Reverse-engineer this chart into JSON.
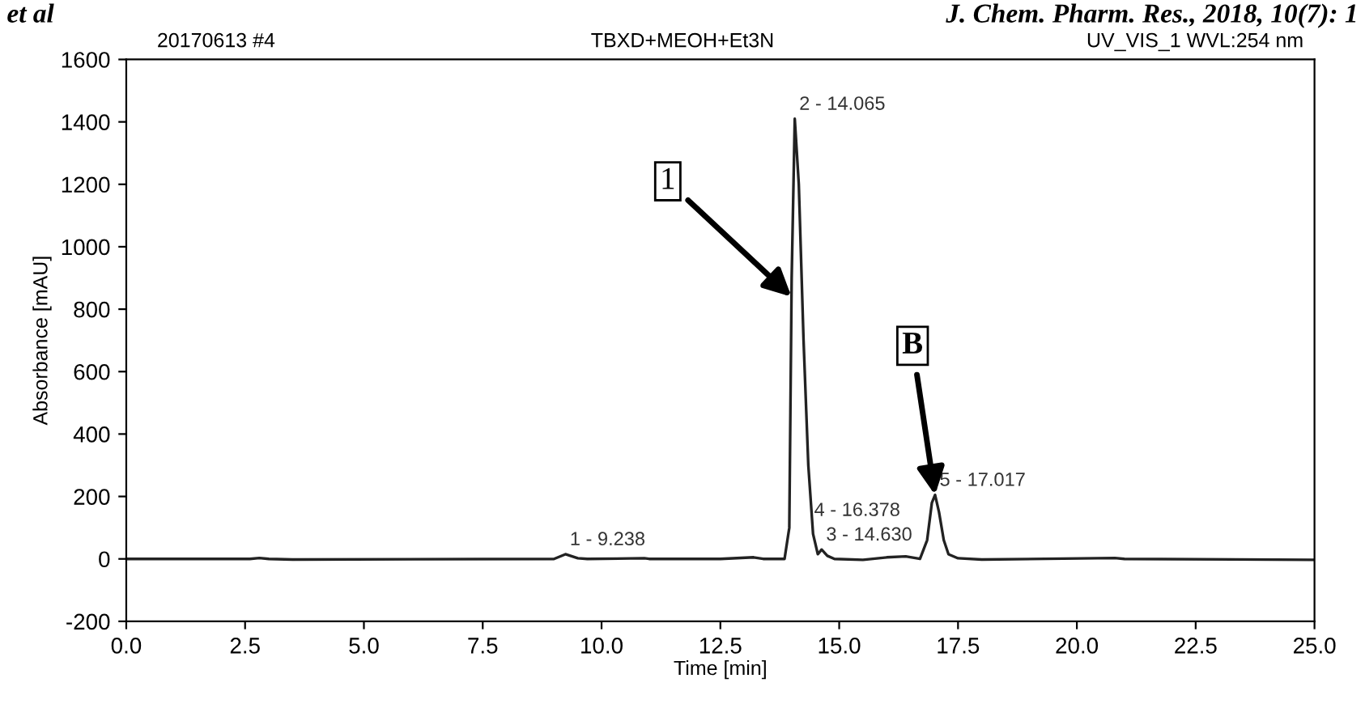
{
  "chart_data": {
    "type": "line",
    "title": "TBXD+MEOH+Et3N",
    "xlabel": "Time [min]",
    "ylabel": "Absorbance [mAU]",
    "x": [
      0,
      2.6,
      2.8,
      3.0,
      3.5,
      9.0,
      9.24,
      9.5,
      9.7,
      10.9,
      11.0,
      12.5,
      13.2,
      13.4,
      13.85,
      13.95,
      14.0,
      14.065,
      14.15,
      14.25,
      14.35,
      14.45,
      14.55,
      14.63,
      14.75,
      14.9,
      15.5,
      16.0,
      16.4,
      16.7,
      16.85,
      16.95,
      17.017,
      17.1,
      17.2,
      17.3,
      17.5,
      18.0,
      20.8,
      21.0,
      25.0
    ],
    "series": [
      {
        "color": "#222222",
        "values": [
          0,
          0,
          3,
          0,
          -2,
          0,
          15,
          2,
          0,
          2,
          0,
          0,
          5,
          0,
          0,
          100,
          900,
          1410,
          1200,
          700,
          300,
          80,
          15,
          30,
          10,
          0,
          -3,
          5,
          8,
          0,
          60,
          180,
          205,
          150,
          60,
          15,
          2,
          -2,
          3,
          0,
          -3
        ]
      }
    ],
    "xlim": [
      0,
      25
    ],
    "ylim": [
      -200,
      1600
    ],
    "xticks": [
      {
        "value": 0,
        "label": "0.0"
      },
      {
        "value": 2.5,
        "label": "2.5"
      },
      {
        "value": 5,
        "label": "5.0"
      },
      {
        "value": 7.5,
        "label": "7.5"
      },
      {
        "value": 10,
        "label": "10.0"
      },
      {
        "value": 12.5,
        "label": "12.5"
      },
      {
        "value": 15,
        "label": "15.0"
      },
      {
        "value": 17.5,
        "label": "17.5"
      },
      {
        "value": 20,
        "label": "20.0"
      },
      {
        "value": 22.5,
        "label": "22.5"
      },
      {
        "value": 25,
        "label": "25.0"
      }
    ],
    "yticks": [
      -200,
      0,
      200,
      400,
      600,
      800,
      1000,
      1200,
      1400,
      1600
    ],
    "annotations": [
      "et al",
      "J. Chem. Pharm. Res., 2018, 10(7): 1",
      "20170613 #4",
      "UV_VIS_1 WVL:254 nm",
      {
        "text": "1 - 9.238",
        "x": 9.238,
        "y": 15
      },
      {
        "text": "2 - 14.065",
        "x": 14.065,
        "y": 1410
      },
      {
        "text": "3 - 14.630",
        "x": 14.63,
        "y": 30
      },
      {
        "text": "4 - 16.378",
        "x": 16.378,
        "y": 8
      },
      {
        "text": "5 - 17.017",
        "x": 17.017,
        "y": 205
      },
      {
        "text": "1",
        "x": 13.996,
        "y": 840
      },
      {
        "text": "B",
        "x": 17.017,
        "y": 205
      }
    ],
    "grid": false,
    "legend": false,
    "marker": "none",
    "line_style": "solid"
  }
}
